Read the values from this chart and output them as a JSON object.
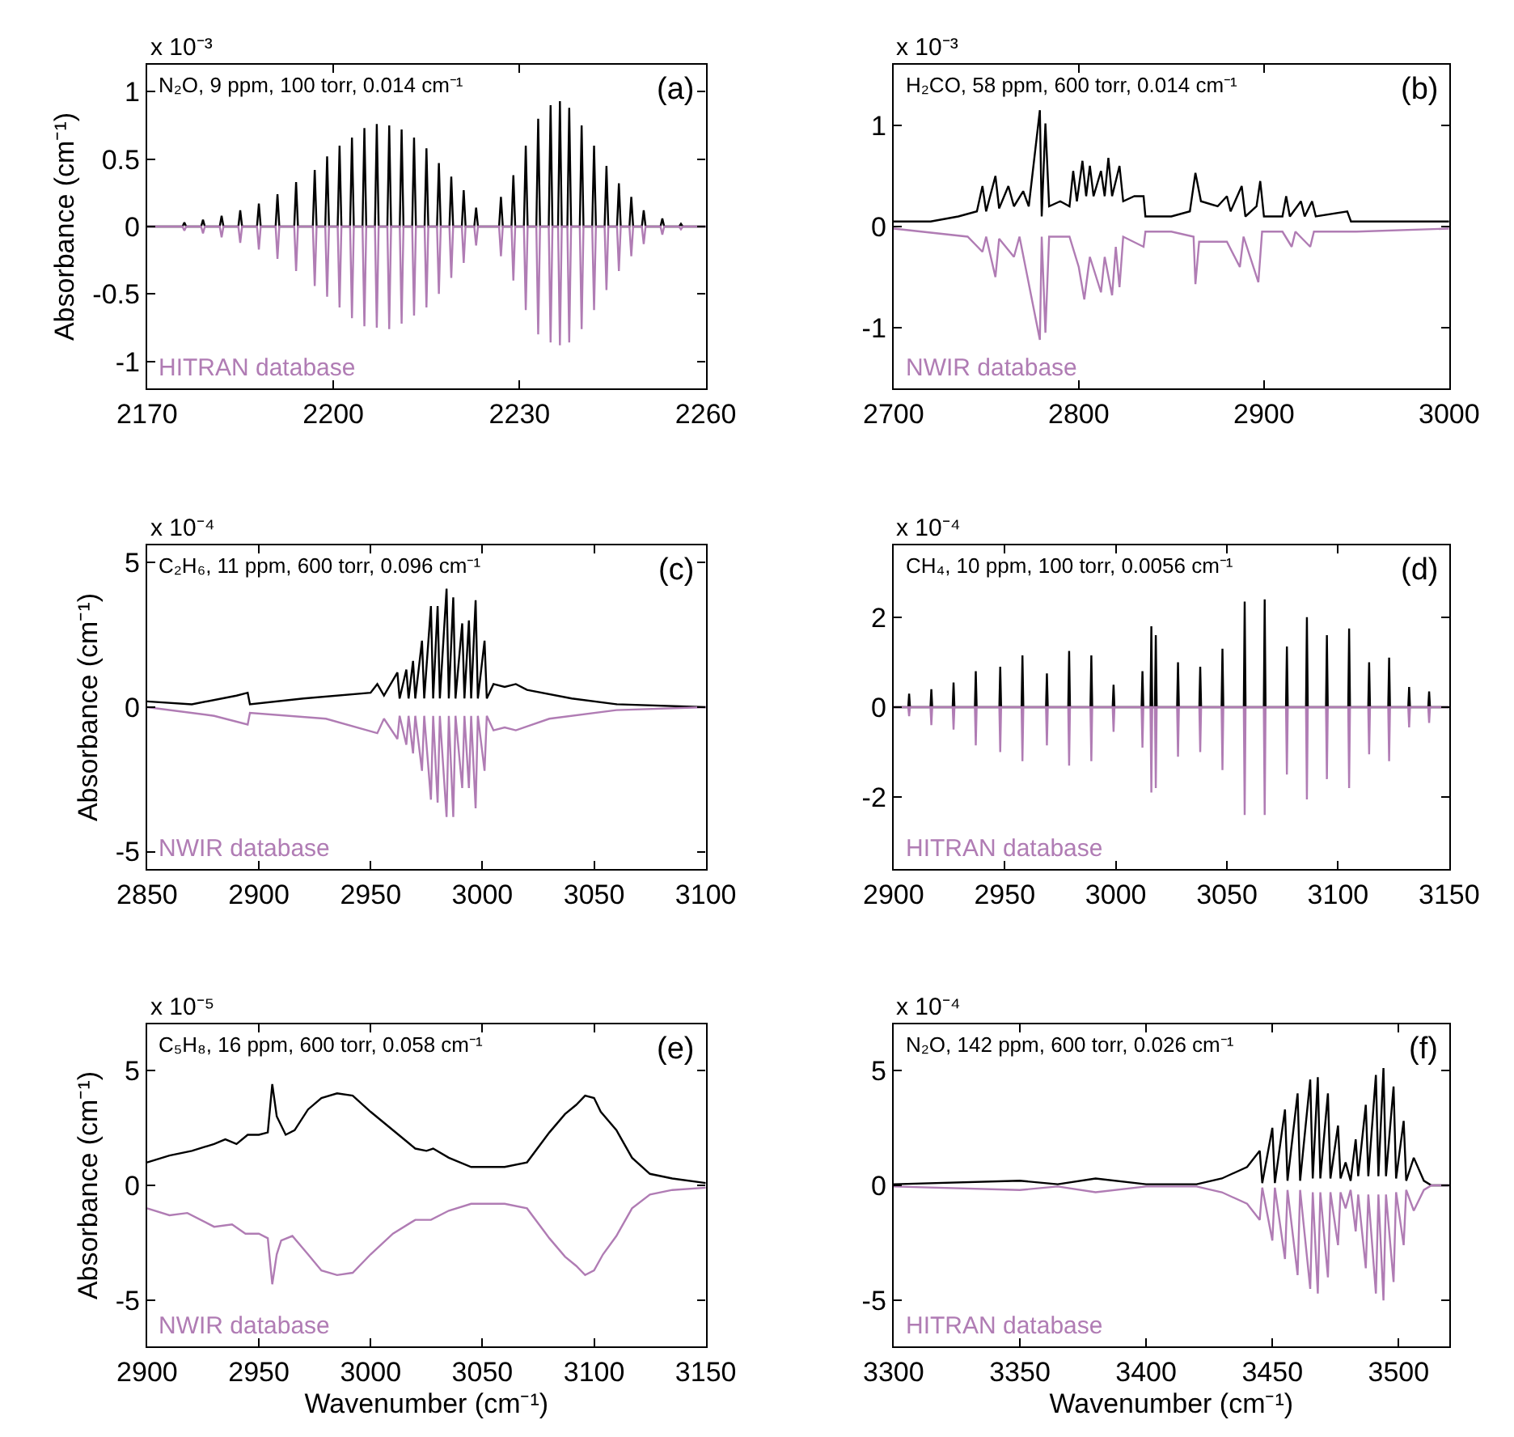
{
  "chart_data": [
    {
      "type": "line",
      "ylabel": "Absorbance (cm⁻¹)",
      "annotations": [
        "N₂O, 9 ppm, 100 torr, 0.014 cm⁻¹",
        "(a)",
        "x 10⁻³"
      ],
      "xlim": [
        2170,
        2260
      ],
      "xticks": [
        2170,
        2200,
        2230,
        2260
      ],
      "ylim": [
        -1.2,
        1.2
      ],
      "yticks": [
        -1,
        -0.5,
        0,
        0.5,
        1
      ],
      "x": [
        2170,
        2175.7,
        2176,
        2176.3,
        2178.7,
        2179,
        2179.3,
        2181.7,
        2182,
        2182.3,
        2184.7,
        2185,
        2185.3,
        2187.7,
        2188,
        2188.3,
        2190.7,
        2191,
        2191.3,
        2193.7,
        2194,
        2194.3,
        2196.7,
        2197,
        2197.3,
        2198.7,
        2199,
        2199.3,
        2200.7,
        2201,
        2201.3,
        2202.7,
        2203,
        2203.3,
        2204.7,
        2205,
        2205.3,
        2206.7,
        2207,
        2207.3,
        2208.7,
        2209,
        2209.3,
        2210.7,
        2211,
        2211.3,
        2212.7,
        2213,
        2213.3,
        2214.7,
        2215,
        2215.3,
        2216.7,
        2217,
        2217.3,
        2218.7,
        2219,
        2219.3,
        2220.7,
        2221,
        2221.3,
        2222.7,
        2223,
        2223.3,
        2226.7,
        2227,
        2227.3,
        2228.7,
        2229,
        2229.3,
        2230.7,
        2231,
        2231.3,
        2232.7,
        2233,
        2233.3,
        2234.7,
        2235,
        2235.3,
        2236.2,
        2236.5,
        2236.8,
        2237.7,
        2238,
        2238.3,
        2239.7,
        2240,
        2240.3,
        2241.7,
        2242,
        2242.3,
        2243.7,
        2244,
        2244.3,
        2245.7,
        2246,
        2246.3,
        2247.7,
        2248,
        2248.3,
        2249.7,
        2250,
        2250.3,
        2252.7,
        2253,
        2253.3,
        2255.7,
        2256,
        2256.3,
        2260
      ],
      "series": [
        {
          "color": "#000000",
          "values": [
            0,
            0,
            0.03,
            0,
            0,
            0.05,
            0,
            0,
            0.08,
            0,
            0,
            0.12,
            0,
            0,
            0.17,
            0,
            0,
            0.24,
            0,
            0,
            0.33,
            0,
            0,
            0.42,
            0,
            0,
            0.52,
            0,
            0,
            0.6,
            0,
            0,
            0.66,
            0,
            0,
            0.73,
            0,
            0,
            0.76,
            0,
            0,
            0.75,
            0,
            0,
            0.72,
            0,
            0,
            0.66,
            0,
            0,
            0.58,
            0,
            0,
            0.47,
            0,
            0,
            0.37,
            0,
            0,
            0.27,
            0,
            0,
            0.14,
            0,
            0,
            0.22,
            0,
            0,
            0.38,
            0,
            0,
            0.6,
            0,
            0,
            0.8,
            0,
            0,
            0.9,
            0,
            0,
            0.93,
            0,
            0,
            0.88,
            0,
            0,
            0.75,
            0,
            0,
            0.6,
            0,
            0,
            0.45,
            0,
            0,
            0.32,
            0,
            0,
            0.22,
            0,
            0,
            0.12,
            0,
            0,
            0.06,
            0,
            0,
            0.02,
            0,
            0
          ]
        },
        {
          "name": "HITRAN database",
          "color": "#b07cb4",
          "values": [
            0,
            0,
            -0.03,
            0,
            0,
            -0.05,
            0,
            0,
            -0.08,
            0,
            0,
            -0.12,
            0,
            0,
            -0.17,
            0,
            0,
            -0.24,
            0,
            0,
            -0.33,
            0,
            0,
            -0.44,
            0,
            0,
            -0.52,
            0,
            0,
            -0.6,
            0,
            0,
            -0.68,
            0,
            0,
            -0.74,
            0,
            0,
            -0.75,
            0,
            0,
            -0.76,
            0,
            0,
            -0.72,
            0,
            0,
            -0.66,
            0,
            0,
            -0.6,
            0,
            0,
            -0.5,
            0,
            0,
            -0.38,
            0,
            0,
            -0.27,
            0,
            0,
            -0.14,
            0,
            0,
            -0.22,
            0,
            0,
            -0.4,
            0,
            0,
            -0.62,
            0,
            0,
            -0.8,
            0,
            0,
            -0.86,
            0,
            0,
            -0.88,
            0,
            0,
            -0.86,
            0,
            0,
            -0.76,
            0,
            0,
            -0.62,
            0,
            0,
            -0.47,
            0,
            0,
            -0.33,
            0,
            0,
            -0.22,
            0,
            0,
            -0.13,
            0,
            0,
            -0.06,
            0,
            0,
            -0.02,
            0,
            0
          ]
        }
      ]
    },
    {
      "type": "line",
      "annotations": [
        "H₂CO, 58 ppm, 600 torr, 0.014 cm⁻¹",
        "(b)",
        "x 10⁻³"
      ],
      "xlim": [
        2700,
        3000
      ],
      "xticks": [
        2700,
        2800,
        2900,
        3000
      ],
      "ylim": [
        -1.6,
        1.6
      ],
      "yticks": [
        -1,
        0,
        1
      ],
      "series": [
        {
          "color": "#000000",
          "x": [
            2700,
            2720,
            2735,
            2745,
            2748,
            2750,
            2755,
            2757,
            2762,
            2765,
            2770,
            2773,
            2779,
            2780,
            2782,
            2784,
            2790,
            2795,
            2797,
            2799,
            2802,
            2804,
            2806,
            2808,
            2812,
            2814,
            2816,
            2818,
            2822,
            2824,
            2830,
            2835,
            2836,
            2850,
            2860,
            2863,
            2866,
            2875,
            2880,
            2882,
            2888,
            2890,
            2896,
            2898,
            2900,
            2910,
            2912,
            2914,
            2920,
            2922,
            2926,
            2928,
            2945,
            2947,
            2970,
            3000
          ],
          "values": [
            0.05,
            0.05,
            0.1,
            0.15,
            0.4,
            0.15,
            0.5,
            0.18,
            0.4,
            0.2,
            0.35,
            0.2,
            1.15,
            0.1,
            1.02,
            0.2,
            0.25,
            0.2,
            0.55,
            0.25,
            0.65,
            0.3,
            0.6,
            0.3,
            0.55,
            0.3,
            0.68,
            0.3,
            0.6,
            0.25,
            0.3,
            0.3,
            0.1,
            0.1,
            0.15,
            0.53,
            0.25,
            0.2,
            0.3,
            0.15,
            0.4,
            0.1,
            0.2,
            0.45,
            0.1,
            0.1,
            0.3,
            0.1,
            0.25,
            0.1,
            0.25,
            0.1,
            0.15,
            0.05,
            0.05,
            0.05
          ]
        },
        {
          "name": "NWIR database",
          "color": "#b07cb4",
          "x": [
            2700,
            2740,
            2748,
            2750,
            2755,
            2757,
            2765,
            2768,
            2779,
            2780,
            2782,
            2784,
            2795,
            2800,
            2803,
            2806,
            2812,
            2814,
            2818,
            2820,
            2822,
            2824,
            2835,
            2836,
            2850,
            2862,
            2863,
            2865,
            2880,
            2887,
            2889,
            2897,
            2899,
            2910,
            2915,
            2917,
            2925,
            2927,
            2950,
            3000
          ],
          "values": [
            -0.02,
            -0.1,
            -0.25,
            -0.1,
            -0.5,
            -0.12,
            -0.3,
            -0.1,
            -1.12,
            -0.1,
            -1.05,
            -0.1,
            -0.1,
            -0.4,
            -0.72,
            -0.3,
            -0.65,
            -0.3,
            -0.68,
            -0.2,
            -0.6,
            -0.1,
            -0.2,
            -0.05,
            -0.05,
            -0.1,
            -0.57,
            -0.15,
            -0.15,
            -0.4,
            -0.1,
            -0.55,
            -0.05,
            -0.05,
            -0.2,
            -0.05,
            -0.2,
            -0.05,
            -0.05,
            -0.02
          ]
        }
      ]
    },
    {
      "type": "line",
      "ylabel": "Absorbance (cm⁻¹)",
      "annotations": [
        "C₂H₆, 11 ppm, 600 torr, 0.096 cm⁻¹",
        "(c)",
        "x 10⁻⁴"
      ],
      "xlim": [
        2850,
        3100
      ],
      "xticks": [
        2850,
        2900,
        2950,
        3000,
        3050,
        3100
      ],
      "ylim": [
        -5.6,
        5.6
      ],
      "yticks": [
        -5,
        0,
        5
      ],
      "series": [
        {
          "color": "#000000",
          "x": [
            2850,
            2870,
            2890,
            2895,
            2896,
            2920,
            2950,
            2953,
            2956,
            2962,
            2963,
            2966,
            2967,
            2969,
            2970,
            2973,
            2974,
            2977,
            2978,
            2980,
            2981,
            2984,
            2985,
            2987,
            2988,
            2991,
            2992,
            2994,
            2995,
            2997,
            2998,
            3001,
            3002,
            3005,
            3010,
            3015,
            3020,
            3040,
            3060,
            3100
          ],
          "values": [
            0.2,
            0.1,
            0.4,
            0.5,
            0.1,
            0.3,
            0.5,
            0.8,
            0.4,
            1.2,
            0.3,
            1.3,
            0.3,
            1.6,
            0.3,
            2.3,
            0.3,
            3.5,
            0.3,
            3.5,
            0.3,
            4.1,
            0.3,
            3.8,
            0.3,
            2.9,
            0.3,
            3.0,
            0.3,
            3.7,
            0.3,
            2.3,
            0.3,
            0.8,
            0.7,
            0.8,
            0.6,
            0.3,
            0.1,
            0.0
          ]
        },
        {
          "name": "NWIR database",
          "color": "#b07cb4",
          "x": [
            2850,
            2880,
            2895,
            2896,
            2930,
            2953,
            2956,
            2962,
            2963,
            2966,
            2967,
            2969,
            2970,
            2973,
            2974,
            2977,
            2978,
            2980,
            2981,
            2984,
            2985,
            2987,
            2988,
            2991,
            2992,
            2994,
            2995,
            2997,
            2998,
            3001,
            3002,
            3005,
            3010,
            3015,
            3030,
            3060,
            3100
          ],
          "values": [
            0,
            -0.3,
            -0.6,
            -0.2,
            -0.4,
            -0.9,
            -0.4,
            -1.1,
            -0.3,
            -1.3,
            -0.3,
            -1.6,
            -0.3,
            -2.2,
            -0.3,
            -3.2,
            -0.3,
            -3.3,
            -0.3,
            -3.8,
            -0.3,
            -3.8,
            -0.3,
            -2.8,
            -0.3,
            -2.8,
            -0.3,
            -3.5,
            -0.3,
            -2.2,
            -0.3,
            -0.8,
            -0.7,
            -0.8,
            -0.4,
            -0.1,
            0
          ]
        }
      ]
    },
    {
      "type": "line",
      "annotations": [
        "CH₄, 10 ppm, 100 torr, 0.0056 cm⁻¹",
        "(d)",
        "x 10⁻⁴"
      ],
      "xlim": [
        2900,
        3150
      ],
      "xticks": [
        2900,
        2950,
        3000,
        3050,
        3100,
        3150
      ],
      "ylim": [
        -3.6,
        3.6
      ],
      "yticks": [
        -2,
        0,
        2
      ],
      "x": [
        2900,
        2906.6,
        2907,
        2907.4,
        2916.6,
        2917,
        2917.4,
        2926.6,
        2927,
        2927.4,
        2936.6,
        2937,
        2937.4,
        2947.6,
        2948,
        2948.4,
        2957.6,
        2958,
        2958.4,
        2968.6,
        2969,
        2969.4,
        2978.6,
        2979,
        2979.4,
        2988.6,
        2989,
        2989.4,
        2998.6,
        2999,
        2999.4,
        3011.6,
        3012,
        3012.4,
        3015.6,
        3016,
        3016.4,
        3017.6,
        3018,
        3018.4,
        3027.6,
        3028,
        3028.4,
        3037.6,
        3038,
        3038.4,
        3047.6,
        3048,
        3048.4,
        3057.6,
        3058,
        3058.4,
        3066.6,
        3067,
        3067.4,
        3076.6,
        3077,
        3077.4,
        3085.6,
        3086,
        3086.4,
        3094.6,
        3095,
        3095.4,
        3104.6,
        3105,
        3105.4,
        3113.6,
        3114,
        3114.4,
        3122.6,
        3123,
        3123.4,
        3131.6,
        3132,
        3132.4,
        3140.6,
        3141,
        3141.4,
        3150
      ],
      "series": [
        {
          "color": "#000000",
          "values": [
            0,
            0,
            0.3,
            0,
            0,
            0.4,
            0,
            0,
            0.55,
            0,
            0,
            0.8,
            0,
            0,
            0.9,
            0,
            0,
            1.15,
            0,
            0,
            0.75,
            0,
            0,
            1.25,
            0,
            0,
            1.15,
            0,
            0,
            0.5,
            0,
            0,
            0.8,
            0,
            0,
            1.8,
            0,
            0,
            1.6,
            0,
            0,
            1.0,
            0,
            0,
            0.9,
            0,
            0,
            1.3,
            0,
            0,
            2.35,
            0,
            0,
            2.4,
            0,
            0,
            1.35,
            0,
            0,
            2.0,
            0,
            0,
            1.6,
            0,
            0,
            1.75,
            0,
            0,
            1.0,
            0,
            0,
            1.1,
            0,
            0,
            0.45,
            0,
            0,
            0.35,
            0,
            0
          ]
        },
        {
          "name": "HITRAN database",
          "color": "#b07cb4",
          "values": [
            0,
            0,
            -0.2,
            0,
            0,
            -0.4,
            0,
            0,
            -0.5,
            0,
            0,
            -0.85,
            0,
            0,
            -1.0,
            0,
            0,
            -1.2,
            0,
            0,
            -0.85,
            0,
            0,
            -1.3,
            0,
            0,
            -1.2,
            0,
            0,
            -0.55,
            0,
            0,
            -0.9,
            0,
            0,
            -1.9,
            0,
            0,
            -1.8,
            0,
            0,
            -1.1,
            0,
            0,
            -1.0,
            0,
            0,
            -1.4,
            0,
            0,
            -2.4,
            0,
            0,
            -2.4,
            0,
            0,
            -1.5,
            0,
            0,
            -2.05,
            0,
            0,
            -1.6,
            0,
            0,
            -1.8,
            0,
            0,
            -1.05,
            0,
            0,
            -1.2,
            0,
            0,
            -0.45,
            0,
            0,
            -0.35,
            0,
            0
          ]
        }
      ]
    },
    {
      "type": "line",
      "ylabel": "Absorbance (cm⁻¹)",
      "xlabel": "Wavenumber (cm⁻¹)",
      "annotations": [
        "C₅H₈, 16 ppm, 600 torr, 0.058 cm⁻¹",
        "(e)",
        "x 10⁻⁵"
      ],
      "xlim": [
        2900,
        3150
      ],
      "xticks": [
        2900,
        2950,
        3000,
        3050,
        3100,
        3150
      ],
      "ylim": [
        -7,
        7
      ],
      "yticks": [
        -5,
        0,
        5
      ],
      "series": [
        {
          "color": "#000000",
          "x": [
            2900,
            2910,
            2920,
            2930,
            2935,
            2940,
            2945,
            2950,
            2954,
            2956,
            2958,
            2962,
            2966,
            2972,
            2978,
            2985,
            2992,
            3000,
            3010,
            3020,
            3025,
            3028,
            3035,
            3045,
            3060,
            3070,
            3080,
            3087,
            3092,
            3096,
            3100,
            3103,
            3110,
            3117,
            3125,
            3135,
            3150
          ],
          "values": [
            1.0,
            1.3,
            1.5,
            1.8,
            2.0,
            1.8,
            2.2,
            2.2,
            2.3,
            4.4,
            3.0,
            2.2,
            2.4,
            3.3,
            3.8,
            4.0,
            3.9,
            3.2,
            2.4,
            1.6,
            1.5,
            1.6,
            1.2,
            0.8,
            0.8,
            1.0,
            2.3,
            3.1,
            3.5,
            3.9,
            3.8,
            3.2,
            2.4,
            1.2,
            0.5,
            0.3,
            0.1
          ]
        },
        {
          "name": "NWIR database",
          "color": "#b07cb4",
          "x": [
            2900,
            2910,
            2918,
            2930,
            2938,
            2944,
            2950,
            2954,
            2956,
            2958,
            2960,
            2965,
            2972,
            2978,
            2985,
            2992,
            3000,
            3010,
            3020,
            3027,
            3035,
            3045,
            3060,
            3070,
            3080,
            3087,
            3092,
            3096,
            3100,
            3104,
            3110,
            3117,
            3125,
            3135,
            3150
          ],
          "values": [
            -1.0,
            -1.3,
            -1.2,
            -1.8,
            -1.7,
            -2.1,
            -2.1,
            -2.3,
            -4.3,
            -3.0,
            -2.4,
            -2.2,
            -3.0,
            -3.7,
            -3.9,
            -3.8,
            -3.0,
            -2.1,
            -1.5,
            -1.5,
            -1.1,
            -0.8,
            -0.8,
            -1.0,
            -2.3,
            -3.1,
            -3.5,
            -3.9,
            -3.7,
            -3.0,
            -2.2,
            -1.0,
            -0.4,
            -0.2,
            -0.1
          ]
        }
      ]
    },
    {
      "type": "line",
      "xlabel": "Wavenumber (cm⁻¹)",
      "annotations": [
        "N₂O, 142 ppm, 600 torr, 0.026 cm⁻¹",
        "(f)",
        "x 10⁻⁴"
      ],
      "xlim": [
        3300,
        3520
      ],
      "xticks": [
        3300,
        3350,
        3400,
        3450,
        3500
      ],
      "ylim": [
        -7,
        7
      ],
      "yticks": [
        -5,
        0,
        5
      ],
      "series": [
        {
          "color": "#000000",
          "x": [
            3300,
            3350,
            3365,
            3380,
            3400,
            3420,
            3430,
            3440,
            3445,
            3446,
            3450,
            3451,
            3455,
            3456,
            3460,
            3461,
            3465,
            3466,
            3468,
            3469,
            3472,
            3473,
            3476,
            3477,
            3479,
            3481,
            3483,
            3484,
            3487,
            3488,
            3491,
            3492,
            3494,
            3495,
            3498,
            3499,
            3502,
            3503,
            3506,
            3510,
            3513,
            3520
          ],
          "values": [
            0.05,
            0.2,
            0.05,
            0.3,
            0.05,
            0.05,
            0.3,
            0.8,
            1.5,
            0.1,
            2.5,
            0.1,
            3.3,
            0.2,
            4.0,
            0.2,
            4.6,
            0.3,
            4.7,
            0.3,
            4.0,
            0.3,
            2.6,
            0.3,
            1.0,
            0.2,
            2.0,
            0.4,
            3.5,
            0.4,
            4.8,
            0.4,
            5.1,
            0.4,
            4.3,
            0.3,
            2.8,
            0.2,
            1.2,
            0.2,
            0.0,
            0.0
          ]
        },
        {
          "name": "HITRAN database",
          "color": "#b07cb4",
          "x": [
            3300,
            3350,
            3365,
            3380,
            3400,
            3420,
            3430,
            3440,
            3445,
            3446,
            3450,
            3451,
            3455,
            3456,
            3460,
            3461,
            3465,
            3466,
            3468,
            3469,
            3472,
            3473,
            3476,
            3477,
            3479,
            3481,
            3483,
            3484,
            3487,
            3488,
            3491,
            3492,
            3494,
            3495,
            3498,
            3499,
            3502,
            3503,
            3506,
            3510,
            3513,
            3520
          ],
          "values": [
            -0.05,
            -0.2,
            -0.05,
            -0.3,
            -0.05,
            -0.05,
            -0.3,
            -0.8,
            -1.5,
            -0.1,
            -2.4,
            -0.1,
            -3.2,
            -0.2,
            -3.9,
            -0.2,
            -4.5,
            -0.3,
            -4.7,
            -0.3,
            -4.0,
            -0.3,
            -2.6,
            -0.3,
            -1.0,
            -0.2,
            -2.0,
            -0.4,
            -3.6,
            -0.4,
            -4.7,
            -0.4,
            -5.0,
            -0.4,
            -4.2,
            -0.3,
            -2.6,
            -0.2,
            -1.1,
            -0.2,
            0.0,
            0.0
          ]
        }
      ]
    }
  ]
}
